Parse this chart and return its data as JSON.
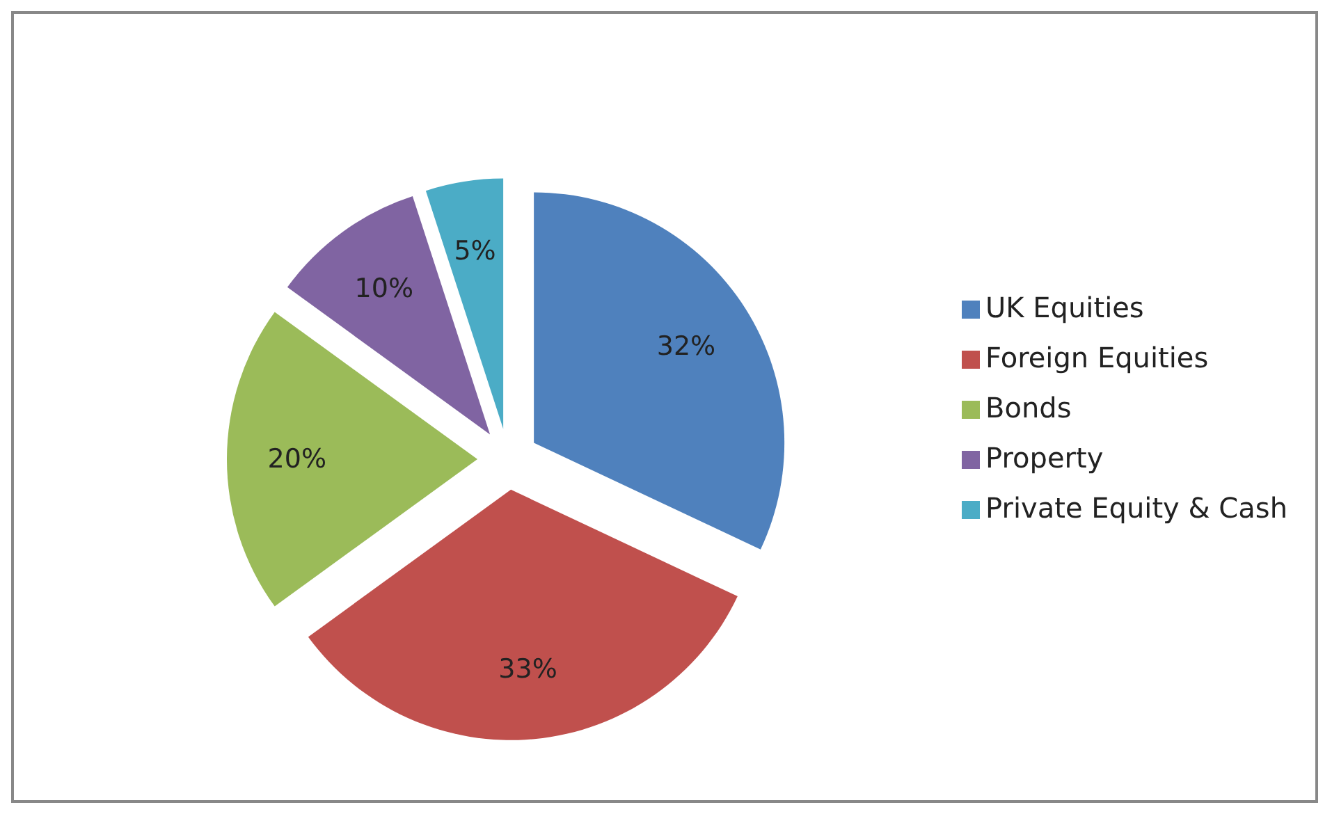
{
  "chart_data": {
    "type": "pie",
    "categories": [
      "UK Equities",
      "Foreign Equities",
      "Bonds",
      "Property",
      "Private Equity & Cash"
    ],
    "values": [
      32,
      33,
      20,
      10,
      5
    ],
    "colors": [
      "#4f81bd",
      "#c0504d",
      "#9bbb59",
      "#8064a2",
      "#4bacc6"
    ],
    "value_labels": [
      "32%",
      "33%",
      "20%",
      "10%",
      "5%"
    ],
    "legend": "right"
  }
}
